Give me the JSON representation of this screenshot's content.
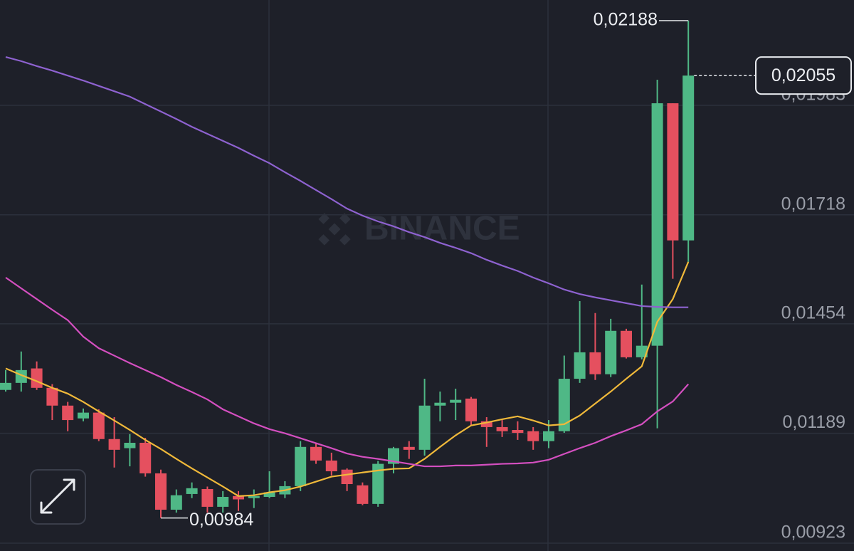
{
  "chart_data": {
    "type": "candlestick",
    "watermark": "BINANCE",
    "open": [
      0.01294,
      0.01311,
      0.01346,
      0.01299,
      0.01256,
      0.01225,
      0.01239,
      0.01175,
      0.01153,
      0.01166,
      0.01092,
      0.01004,
      0.01042,
      0.01054,
      0.01011,
      0.01037,
      0.01032,
      0.01035,
      0.01041,
      0.01061,
      0.01156,
      0.01123,
      0.01101,
      0.01063,
      0.01018,
      0.01115,
      0.01156,
      0.01149,
      0.01256,
      0.01263,
      0.01273,
      0.01218,
      0.01204,
      0.01197,
      0.01194,
      0.0117,
      0.01194,
      0.01321,
      0.01385,
      0.01332,
      0.01437,
      0.01373,
      0.01401,
      0.01988,
      0.01656
    ],
    "high": [
      0.01342,
      0.01387,
      0.01363,
      0.01308,
      0.01265,
      0.01249,
      0.01247,
      0.01228,
      0.01187,
      0.01178,
      0.01101,
      0.01053,
      0.0107,
      0.0106,
      0.01049,
      0.01049,
      0.01053,
      0.01097,
      0.01073,
      0.0117,
      0.01166,
      0.01142,
      0.01104,
      0.0107,
      0.01122,
      0.01156,
      0.0117,
      0.01321,
      0.0129,
      0.01297,
      0.01277,
      0.01228,
      0.01221,
      0.01218,
      0.01204,
      0.01221,
      0.01377,
      0.01509,
      0.0148,
      0.01466,
      0.01442,
      0.01549,
      0.02045,
      0.01988,
      0.02188
    ],
    "low": [
      0.0129,
      0.0129,
      0.01294,
      0.01221,
      0.01194,
      0.01218,
      0.0117,
      0.01106,
      0.01109,
      0.01084,
      0.00984,
      0.00997,
      0.01032,
      0.00997,
      0.00997,
      0.01001,
      0.01008,
      0.01032,
      0.01032,
      0.01049,
      0.01115,
      0.01087,
      0.01049,
      0.01015,
      0.01011,
      0.01092,
      0.01127,
      0.01135,
      0.01218,
      0.01221,
      0.01208,
      0.01156,
      0.0118,
      0.01173,
      0.01149,
      0.01153,
      0.0119,
      0.01311,
      0.01318,
      0.01325,
      0.0137,
      0.01368,
      0.01201,
      0.01563,
      0.01604
    ],
    "close": [
      0.01311,
      0.01342,
      0.01299,
      0.01256,
      0.01221,
      0.01239,
      0.01175,
      0.01149,
      0.01166,
      0.01092,
      0.01004,
      0.01039,
      0.01056,
      0.01011,
      0.01035,
      0.01029,
      0.01037,
      0.01046,
      0.01061,
      0.01156,
      0.01123,
      0.01097,
      0.01066,
      0.01018,
      0.01115,
      0.01153,
      0.01149,
      0.01256,
      0.01263,
      0.0127,
      0.01218,
      0.01204,
      0.01194,
      0.0119,
      0.0117,
      0.01194,
      0.01321,
      0.01385,
      0.01332,
      0.01437,
      0.01373,
      0.01401,
      0.01988,
      0.01656,
      0.02055
    ],
    "up_color": "#4fb886",
    "down_color": "#e5505f",
    "lines": [
      {
        "color": "#f0b93a",
        "values": [
          0.01346,
          0.0133,
          0.01315,
          0.01299,
          0.01285,
          0.01265,
          0.01242,
          0.0122,
          0.01197,
          0.01173,
          0.01151,
          0.01127,
          0.01104,
          0.01082,
          0.0106,
          0.01037,
          0.01039,
          0.01046,
          0.01051,
          0.0106,
          0.01072,
          0.01084,
          0.01089,
          0.01094,
          0.01099,
          0.01103,
          0.01104,
          0.01127,
          0.01156,
          0.01184,
          0.01208,
          0.01215,
          0.01223,
          0.0123,
          0.0122,
          0.01208,
          0.01211,
          0.01232,
          0.01261,
          0.0129,
          0.01321,
          0.01351,
          0.01459,
          0.01514,
          0.01604
        ]
      },
      {
        "color": "#d44fc0",
        "values": [
          0.01566,
          0.0154,
          0.01514,
          0.01488,
          0.01463,
          0.01423,
          0.01395,
          0.01377,
          0.01359,
          0.01342,
          0.01325,
          0.01306,
          0.01289,
          0.01271,
          0.01247,
          0.0123,
          0.01213,
          0.01199,
          0.01189,
          0.01177,
          0.01165,
          0.01153,
          0.0114,
          0.01132,
          0.01127,
          0.01121,
          0.01115,
          0.01109,
          0.01109,
          0.01111,
          0.01111,
          0.01113,
          0.01115,
          0.01116,
          0.01118,
          0.01125,
          0.01139,
          0.01153,
          0.01166,
          0.01182,
          0.01196,
          0.01211,
          0.01242,
          0.01266,
          0.01308
        ]
      },
      {
        "color": "#8e62d0",
        "values": [
          0.021,
          0.0209,
          0.02078,
          0.02067,
          0.02055,
          0.02043,
          0.0203,
          0.02017,
          0.02004,
          0.01986,
          0.01968,
          0.0195,
          0.01931,
          0.01914,
          0.01897,
          0.0188,
          0.01861,
          0.01843,
          0.01821,
          0.018,
          0.01778,
          0.01756,
          0.01733,
          0.01716,
          0.01702,
          0.0169,
          0.01676,
          0.01664,
          0.0165,
          0.01638,
          0.01625,
          0.01609,
          0.01595,
          0.01582,
          0.01566,
          0.01552,
          0.01537,
          0.01526,
          0.01518,
          0.01511,
          0.01504,
          0.01497,
          0.01495,
          0.01494,
          0.01494
        ]
      }
    ],
    "ylim": [
      0.00904,
      0.02238
    ],
    "yticks": [
      {
        "value": 0.00923,
        "label": "0,00923"
      },
      {
        "value": 0.01189,
        "label": "0,01189"
      },
      {
        "value": 0.01454,
        "label": "0,01454"
      },
      {
        "value": 0.01718,
        "label": "0,01718"
      },
      {
        "value": 0.01983,
        "label": "0,01983"
      }
    ],
    "grid": true,
    "max_marker": {
      "value": 0.02188,
      "label": "0,02188"
    },
    "min_marker": {
      "value": 0.00984,
      "label": "0,00984"
    },
    "last_price": {
      "value": 0.02055,
      "label": "0,02055"
    }
  }
}
